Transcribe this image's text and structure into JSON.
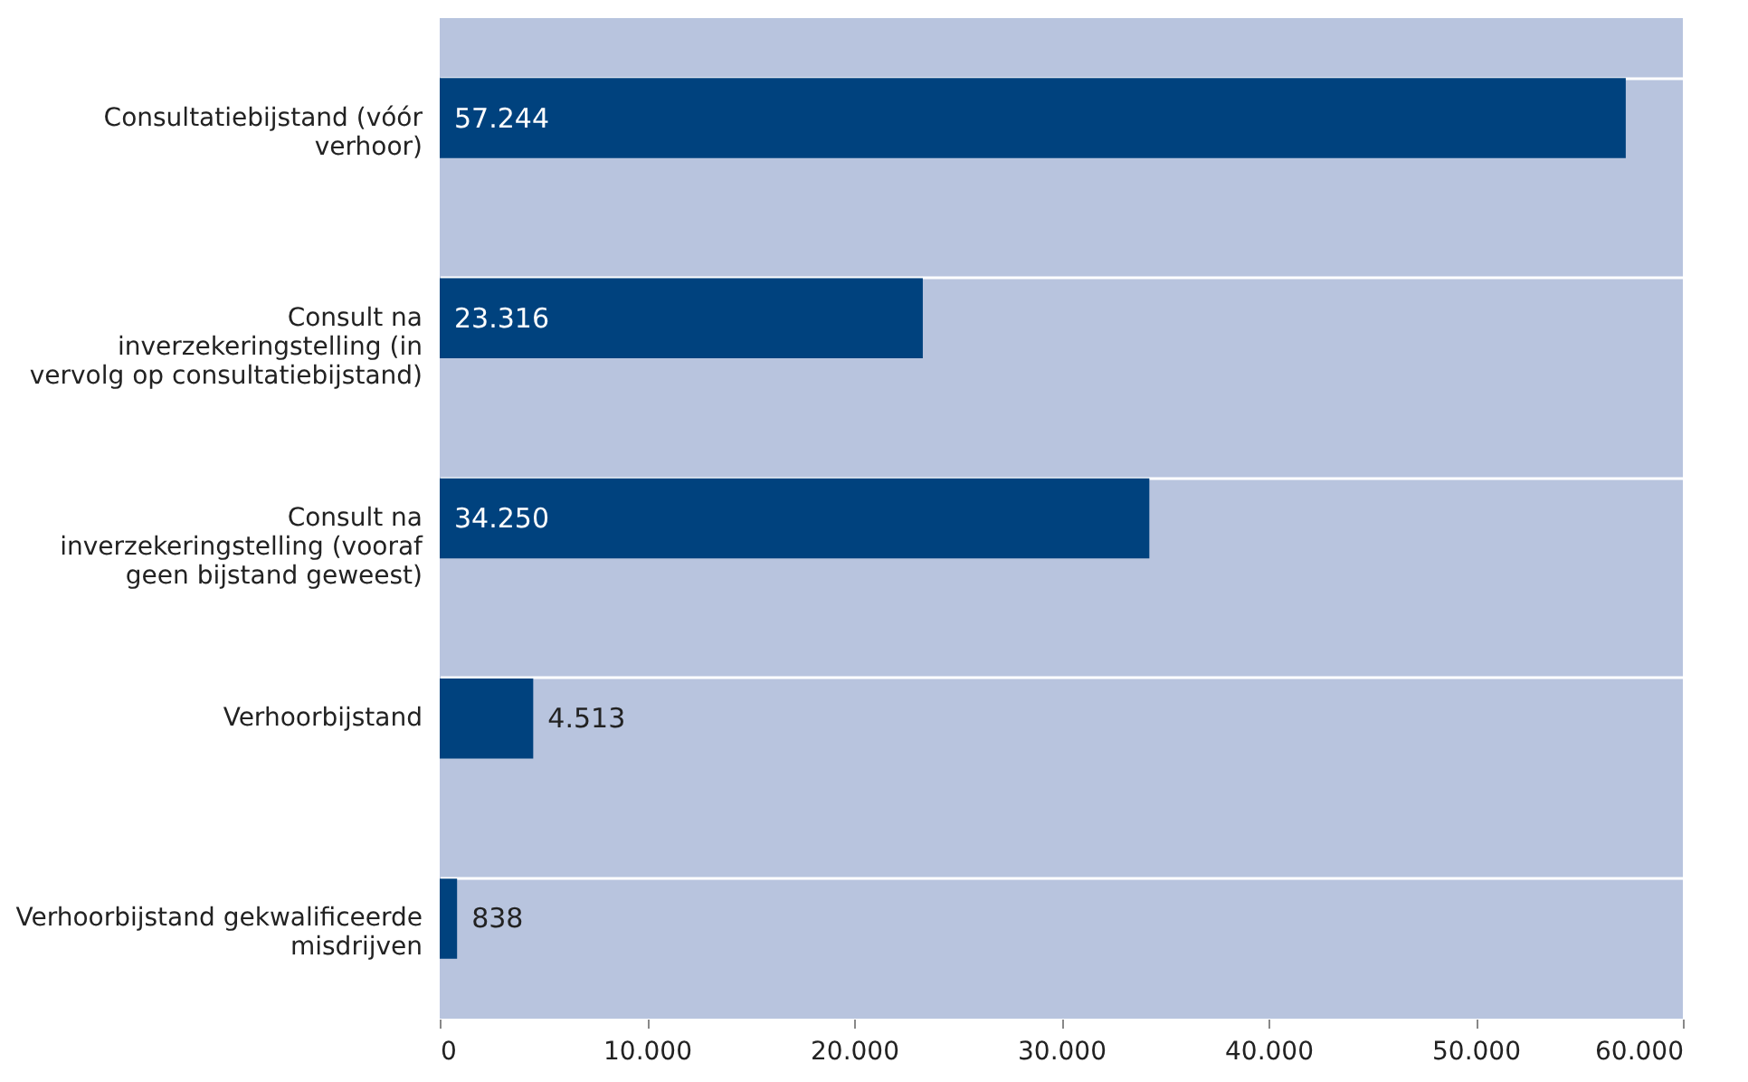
{
  "chart_data": {
    "type": "bar",
    "orientation": "horizontal",
    "categories": [
      "Consultatiebijstand (vóór verhoor)",
      "Consult na inverzekeringstelling (in vervolg op consultatiebijstand)",
      "Consult na inverzekeringstelling (vooraf geen bijstand geweest)",
      "Verhoorbijstand",
      "Verhoorbijstand gekwalificeerde misdrijven"
    ],
    "values": [
      57244,
      23316,
      34250,
      4513,
      838
    ],
    "value_labels": [
      "57.244",
      "23.316",
      "34.250",
      "4.513",
      "838"
    ],
    "color": "#00427e",
    "xlim": [
      0,
      60000
    ],
    "xticks": [
      0,
      {
        "value": 10000,
        "label": "10.000"
      },
      {
        "value": 20000,
        "label": "20.000"
      },
      {
        "value": 30000,
        "label": "30.000"
      },
      {
        "value": 40000,
        "label": "40.000"
      },
      {
        "value": 50000,
        "label": "50.000"
      },
      {
        "value": 60000,
        "label": "60.000"
      }
    ],
    "grid": "y"
  }
}
